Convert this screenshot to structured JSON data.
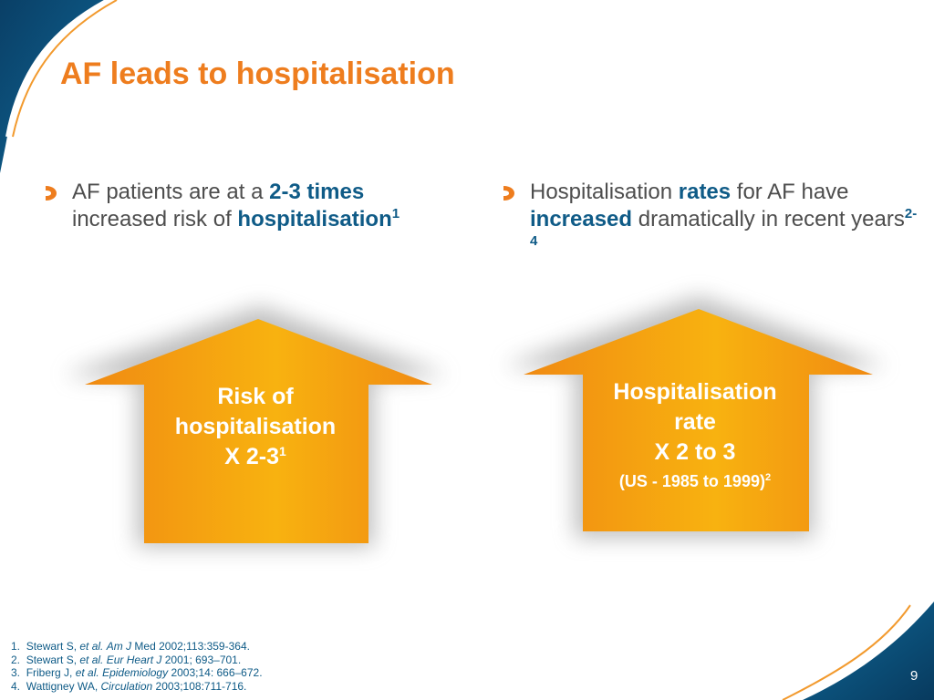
{
  "slide": {
    "title": "AF leads to hospitalisation",
    "page_number": "9",
    "colors": {
      "title": "#ee7d1e",
      "highlight": "#0f5b87",
      "body_text": "#4d4d4d",
      "arrow_orange": "#f6a20f",
      "background_blue": "#0b4f79"
    }
  },
  "bullets": [
    {
      "text_1": "AF patients are at a ",
      "bold_1": "2-3 times",
      "text_2": " increased risk of ",
      "bold_2": "hospitalisation",
      "sup": "1"
    },
    {
      "text_1": "Hospitalisation ",
      "bold_1": "rates",
      "text_2": " for AF have ",
      "bold_2": "increased",
      "text_3": " dramatically in recent years",
      "sup": "2-4"
    }
  ],
  "arrows": [
    {
      "line_1": "Risk of",
      "line_2": "hospitalisation",
      "line_3": "X 2-3",
      "sup": "1"
    },
    {
      "line_1": "Hospitalisation",
      "line_2": "rate",
      "line_3": "X 2 to 3",
      "line_4": "(US - 1985 to 1999)",
      "sup": "2"
    }
  ],
  "references": [
    {
      "num": "1.",
      "author": "Stewart S, ",
      "etal": "et al.",
      "journal": "Am J",
      "rest": " Med 2002;113:359-364."
    },
    {
      "num": "2.",
      "author": "Stewart S, ",
      "etal": "et al.",
      "journal": "Eur Heart J",
      "rest": " 2001; 693–701."
    },
    {
      "num": "3.",
      "author": "Friberg J, ",
      "etal": "et al.",
      "journal": "Epidemiology",
      "rest": " 2003;14: 666–672."
    },
    {
      "num": "4.",
      "author": "Wattigney WA, ",
      "etal": "",
      "journal": "Circulation",
      "rest": " 2003;108:711-716."
    }
  ]
}
